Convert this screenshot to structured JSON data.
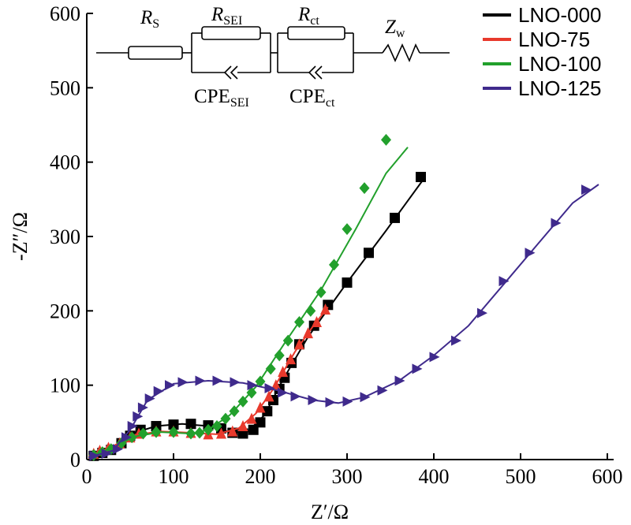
{
  "chart_data": {
    "type": "scatter",
    "xlabel": "Z′/Ω",
    "ylabel": "-Z″/Ω",
    "xlim": [
      0,
      600
    ],
    "ylim": [
      0,
      600
    ],
    "x_ticks": [
      "0",
      "100",
      "200",
      "300",
      "400",
      "500",
      "600"
    ],
    "y_ticks": [
      "0",
      "100",
      "200",
      "300",
      "400",
      "500",
      "600"
    ],
    "grid": false,
    "legend_position": "top-right",
    "circuit": {
      "rs": {
        "main": "R",
        "sub": "S"
      },
      "rsei": {
        "main": "R",
        "sub": "SEI"
      },
      "rct": {
        "main": "R",
        "sub": "ct"
      },
      "zw": {
        "main": "Z",
        "sub": "w"
      },
      "cpesei": {
        "main": "CPE",
        "sub": "SEI"
      },
      "cpect": {
        "main": "CPE",
        "sub": "ct"
      }
    },
    "series": [
      {
        "name": "LNO-000",
        "color": "#000000",
        "marker": "square",
        "points": [
          [
            8,
            5
          ],
          [
            18,
            9
          ],
          [
            28,
            13
          ],
          [
            40,
            22
          ],
          [
            50,
            32
          ],
          [
            62,
            40
          ],
          [
            80,
            45
          ],
          [
            100,
            47
          ],
          [
            120,
            48
          ],
          [
            140,
            46
          ],
          [
            155,
            42
          ],
          [
            168,
            36
          ],
          [
            180,
            35
          ],
          [
            192,
            40
          ],
          [
            200,
            50
          ],
          [
            208,
            65
          ],
          [
            215,
            80
          ],
          [
            222,
            95
          ],
          [
            228,
            110
          ],
          [
            236,
            130
          ],
          [
            245,
            155
          ],
          [
            262,
            180
          ],
          [
            278,
            208
          ],
          [
            300,
            238
          ],
          [
            325,
            278
          ],
          [
            355,
            325
          ],
          [
            385,
            380
          ]
        ],
        "fit": [
          [
            2,
            2
          ],
          [
            30,
            16
          ],
          [
            55,
            36
          ],
          [
            80,
            45
          ],
          [
            110,
            48
          ],
          [
            140,
            45
          ],
          [
            165,
            37
          ],
          [
            185,
            37
          ],
          [
            205,
            60
          ],
          [
            225,
            105
          ],
          [
            255,
            165
          ],
          [
            300,
            238
          ],
          [
            345,
            308
          ],
          [
            390,
            380
          ]
        ]
      },
      {
        "name": "LNO-75",
        "color": "#e8392c",
        "marker": "triangle-up",
        "points": [
          [
            8,
            8
          ],
          [
            15,
            12
          ],
          [
            25,
            16
          ],
          [
            38,
            22
          ],
          [
            50,
            30
          ],
          [
            60,
            35
          ],
          [
            80,
            38
          ],
          [
            100,
            38
          ],
          [
            120,
            36
          ],
          [
            140,
            34
          ],
          [
            155,
            35
          ],
          [
            168,
            38
          ],
          [
            180,
            45
          ],
          [
            190,
            55
          ],
          [
            200,
            70
          ],
          [
            210,
            85
          ],
          [
            218,
            100
          ],
          [
            226,
            118
          ],
          [
            235,
            135
          ],
          [
            245,
            155
          ],
          [
            255,
            170
          ],
          [
            265,
            185
          ],
          [
            275,
            202
          ]
        ],
        "fit": [
          [
            2,
            4
          ],
          [
            30,
            18
          ],
          [
            55,
            33
          ],
          [
            85,
            38
          ],
          [
            120,
            36
          ],
          [
            150,
            34
          ],
          [
            175,
            42
          ],
          [
            195,
            62
          ],
          [
            215,
            95
          ],
          [
            240,
            145
          ],
          [
            260,
            178
          ],
          [
            278,
            205
          ]
        ]
      },
      {
        "name": "LNO-100",
        "color": "#22a02c",
        "marker": "diamond",
        "points": [
          [
            8,
            6
          ],
          [
            18,
            10
          ],
          [
            28,
            14
          ],
          [
            40,
            22
          ],
          [
            52,
            30
          ],
          [
            65,
            35
          ],
          [
            80,
            37
          ],
          [
            100,
            37
          ],
          [
            120,
            35
          ],
          [
            130,
            36
          ],
          [
            140,
            40
          ],
          [
            150,
            45
          ],
          [
            160,
            55
          ],
          [
            170,
            65
          ],
          [
            180,
            78
          ],
          [
            190,
            90
          ],
          [
            200,
            105
          ],
          [
            212,
            122
          ],
          [
            222,
            140
          ],
          [
            232,
            160
          ],
          [
            245,
            185
          ],
          [
            258,
            200
          ],
          [
            270,
            225
          ],
          [
            285,
            262
          ],
          [
            300,
            310
          ],
          [
            320,
            365
          ],
          [
            345,
            430
          ]
        ],
        "fit": [
          [
            2,
            3
          ],
          [
            30,
            16
          ],
          [
            55,
            31
          ],
          [
            85,
            37
          ],
          [
            120,
            35
          ],
          [
            140,
            40
          ],
          [
            165,
            60
          ],
          [
            195,
            98
          ],
          [
            230,
            160
          ],
          [
            270,
            228
          ],
          [
            310,
            310
          ],
          [
            345,
            385
          ],
          [
            370,
            420
          ]
        ]
      },
      {
        "name": "LNO-125",
        "color": "#3f2a8c",
        "marker": "triangle-right",
        "points": [
          [
            8,
            5
          ],
          [
            22,
            8
          ],
          [
            35,
            14
          ],
          [
            45,
            30
          ],
          [
            52,
            45
          ],
          [
            58,
            58
          ],
          [
            64,
            70
          ],
          [
            72,
            82
          ],
          [
            82,
            92
          ],
          [
            95,
            100
          ],
          [
            110,
            104
          ],
          [
            130,
            106
          ],
          [
            150,
            106
          ],
          [
            170,
            104
          ],
          [
            190,
            100
          ],
          [
            210,
            96
          ],
          [
            225,
            90
          ],
          [
            240,
            85
          ],
          [
            260,
            80
          ],
          [
            280,
            77
          ],
          [
            300,
            78
          ],
          [
            320,
            84
          ],
          [
            340,
            93
          ],
          [
            360,
            106
          ],
          [
            380,
            122
          ],
          [
            400,
            138
          ],
          [
            425,
            160
          ],
          [
            455,
            197
          ],
          [
            480,
            240
          ],
          [
            510,
            278
          ],
          [
            540,
            318
          ],
          [
            575,
            363
          ]
        ],
        "fit": [
          [
            2,
            3
          ],
          [
            30,
            12
          ],
          [
            50,
            40
          ],
          [
            70,
            80
          ],
          [
            100,
            102
          ],
          [
            140,
            106
          ],
          [
            180,
            103
          ],
          [
            220,
            93
          ],
          [
            260,
            80
          ],
          [
            290,
            76
          ],
          [
            320,
            84
          ],
          [
            360,
            106
          ],
          [
            400,
            140
          ],
          [
            440,
            180
          ],
          [
            480,
            235
          ],
          [
            520,
            290
          ],
          [
            560,
            345
          ],
          [
            590,
            370
          ]
        ]
      }
    ]
  }
}
